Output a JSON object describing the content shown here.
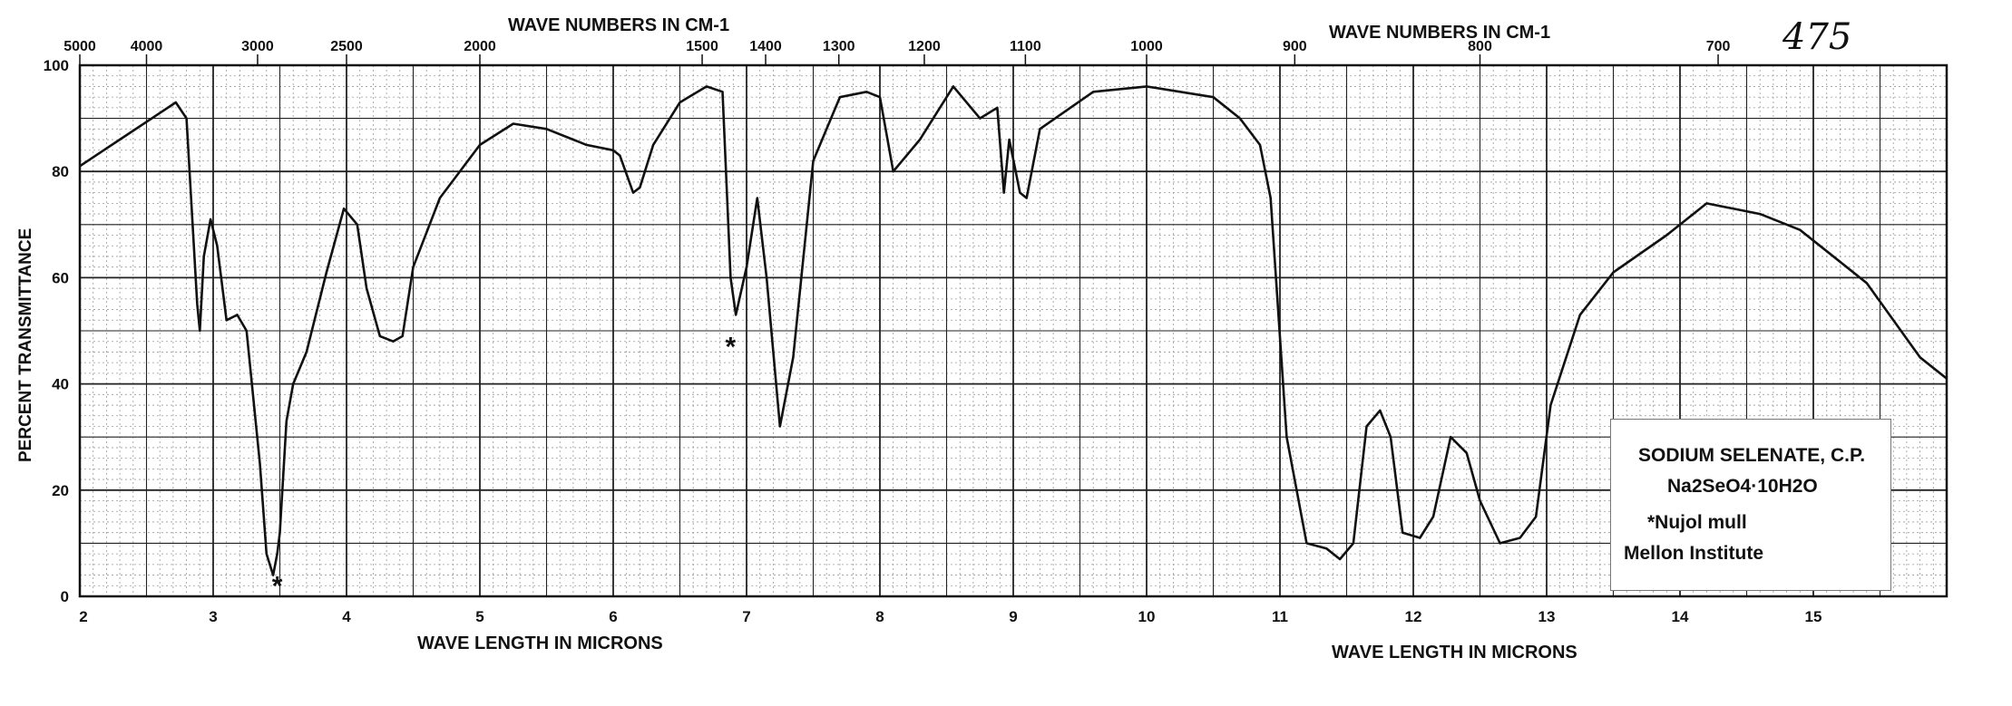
{
  "page_number": "475",
  "chart_data": {
    "type": "line",
    "x_axis_bottom_label": "WAVE LENGTH IN MICRONS",
    "x_axis_top_label": "WAVE NUMBERS IN CM-1",
    "y_axis_label": "PERCENT TRANSMITTANCE",
    "xlim": [
      2,
      16
    ],
    "ylim": [
      0,
      100
    ],
    "grid": true,
    "legend_placement": "bottom-right",
    "x_ticks": [
      2,
      3,
      4,
      5,
      6,
      7,
      8,
      9,
      10,
      11,
      12,
      13,
      14,
      15
    ],
    "x_tick_labels": [
      "2",
      "3",
      "4",
      "5",
      "6",
      "7",
      "8",
      "9",
      "10",
      "11",
      "12",
      "13",
      "14",
      "15"
    ],
    "y_ticks": [
      0,
      20,
      40,
      60,
      80,
      100
    ],
    "y_tick_labels": [
      "0",
      "20",
      "40",
      "60",
      "80",
      "100"
    ],
    "top_ticks": [
      {
        "label": "5000",
        "x": 2.0
      },
      {
        "label": "4000",
        "x": 2.5
      },
      {
        "label": "3000",
        "x": 3.333
      },
      {
        "label": "2500",
        "x": 4.0
      },
      {
        "label": "2000",
        "x": 5.0
      },
      {
        "label": "1500",
        "x": 6.667
      },
      {
        "label": "1400",
        "x": 7.143
      },
      {
        "label": "1300",
        "x": 7.692
      },
      {
        "label": "1200",
        "x": 8.333
      },
      {
        "label": "1100",
        "x": 9.091
      },
      {
        "label": "1000",
        "x": 10.0
      },
      {
        "label": "900",
        "x": 11.111
      },
      {
        "label": "800",
        "x": 12.5
      },
      {
        "label": "700",
        "x": 14.286
      }
    ],
    "series": [
      {
        "x": [
          2.0,
          2.3,
          2.6,
          2.72,
          2.8,
          2.88,
          2.9,
          2.93,
          2.98,
          3.03,
          3.1,
          3.18,
          3.25,
          3.35,
          3.4,
          3.45,
          3.48,
          3.5,
          3.55,
          3.6,
          3.7,
          3.85,
          3.98,
          4.08,
          4.15,
          4.25,
          4.35,
          4.42,
          4.5,
          4.7,
          5.0,
          5.25,
          5.5,
          5.8,
          6.0,
          6.05,
          6.15,
          6.2,
          6.3,
          6.5,
          6.7,
          6.82,
          6.88,
          6.92,
          7.0,
          7.08,
          7.15,
          7.25,
          7.35,
          7.5,
          7.7,
          7.9,
          8.0,
          8.1,
          8.3,
          8.55,
          8.75,
          8.88,
          8.93,
          8.97,
          9.05,
          9.1,
          9.2,
          9.6,
          10.0,
          10.5,
          10.7,
          10.85,
          10.93,
          11.05,
          11.2,
          11.35,
          11.45,
          11.55,
          11.65,
          11.75,
          11.83,
          11.92,
          12.05,
          12.15,
          12.28,
          12.4,
          12.5,
          12.65,
          12.8,
          12.92,
          13.03,
          13.25,
          13.5,
          13.9,
          14.2,
          14.6,
          14.9,
          15.2,
          15.4,
          15.6,
          15.8,
          16.0
        ],
        "y": [
          81,
          86,
          91,
          93,
          90,
          55,
          50,
          64,
          71,
          66,
          52,
          53,
          50,
          25,
          8,
          4,
          8,
          12,
          33,
          40,
          46,
          61,
          73,
          70,
          58,
          49,
          48,
          49,
          62,
          75,
          85,
          89,
          88,
          85,
          84,
          83,
          76,
          77,
          85,
          93,
          96,
          95,
          60,
          53,
          62,
          75,
          60,
          32,
          45,
          82,
          94,
          95,
          94,
          80,
          86,
          96,
          90,
          92,
          76,
          86,
          76,
          75,
          88,
          95,
          96,
          94,
          90,
          85,
          75,
          30,
          10,
          9,
          7,
          10,
          32,
          35,
          30,
          12,
          11,
          15,
          30,
          27,
          18,
          10,
          11,
          15,
          36,
          53,
          61,
          68,
          74,
          72,
          69,
          63,
          59,
          52,
          45,
          41
        ]
      }
    ],
    "annotations": [
      {
        "text": "*",
        "x": 3.48,
        "y": 2
      },
      {
        "text": "*",
        "x": 6.88,
        "y": 47
      }
    ],
    "legend": {
      "title": "SODIUM SELENATE, C.P.",
      "formula": "Na2SeO4·10H2O",
      "note": "*Nujol mull",
      "source": "Mellon Institute"
    }
  }
}
